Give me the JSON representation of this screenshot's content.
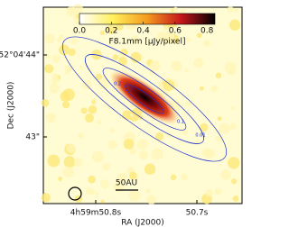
{
  "figure": {
    "colorbar": {
      "label": "F8.1mm [μJy/pixel]",
      "lim": [
        0,
        0.85
      ],
      "ticks": [
        {
          "value": 0,
          "label": "0.0"
        },
        0.2,
        0.4,
        0.6,
        0.8
      ]
    },
    "contours": [
      0.01,
      0.1,
      0.2,
      0.3
    ],
    "x_axis": {
      "title": "RA (J2000)",
      "tick_labels": [
        "4h59m50.8s",
        "50.7s"
      ]
    },
    "y_axis": {
      "title": "Dec (J2000)",
      "tick_labels": [
        "52°04'44\"",
        "43\""
      ]
    },
    "scale_bar": "50AU"
  }
}
